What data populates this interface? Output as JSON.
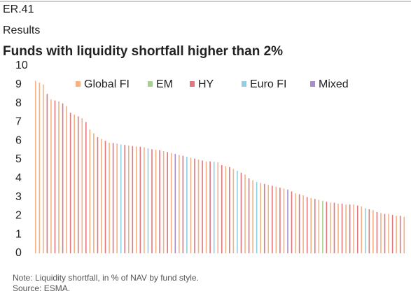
{
  "chart_data": {
    "type": "bar",
    "code": "ER.41",
    "section": "Results",
    "title": "Funds with liquidity shortfall higher than 2%",
    "note": "Note: Liquidity shortfall, in % of NAV by fund style.",
    "source": "Source: ESMA.",
    "ylim": [
      0,
      10
    ],
    "yticks": [
      0,
      1,
      2,
      3,
      4,
      5,
      6,
      7,
      8,
      9,
      10
    ],
    "grid": false,
    "legend": "top",
    "categories": [
      null,
      null,
      null,
      null,
      null,
      null,
      null,
      null,
      null,
      null,
      null,
      null,
      null,
      null,
      null,
      null,
      null,
      null,
      null,
      null,
      null,
      null,
      null,
      null,
      null,
      null,
      null,
      null,
      null,
      null,
      null,
      null,
      null,
      null,
      null,
      null,
      null,
      null,
      null,
      null,
      null,
      null,
      null,
      null,
      null,
      null,
      null,
      null,
      null,
      null,
      null,
      null,
      null,
      null,
      null,
      null,
      null,
      null,
      null,
      null,
      null,
      null,
      null,
      null,
      null,
      null,
      null,
      null,
      null,
      null,
      null,
      null,
      null,
      null,
      null,
      null,
      null,
      null,
      null,
      null,
      null,
      null,
      null,
      null,
      null,
      null,
      null,
      null,
      null,
      null,
      null,
      null,
      null,
      null,
      null,
      null
    ],
    "series": [
      {
        "name": "Global FI",
        "color": "#f4b183",
        "values": [
          9.2,
          9.1,
          9.0,
          null,
          8.2,
          null,
          8.1,
          null,
          7.85,
          null,
          7.4,
          null,
          7.2,
          null,
          6.6,
          6.4,
          null,
          6.1,
          null,
          5.9,
          null,
          5.85,
          null,
          null,
          5.75,
          null,
          5.7,
          null,
          5.65,
          null,
          null,
          5.52,
          null,
          5.45,
          null,
          5.35,
          null,
          5.25,
          null,
          null,
          5.1,
          null,
          5.0,
          null,
          4.9,
          null,
          null,
          4.85,
          null,
          4.65,
          null,
          4.5,
          null,
          null,
          4.2,
          null,
          3.9,
          null,
          3.75,
          null,
          3.65,
          null,
          3.55,
          null,
          3.45,
          null,
          null,
          3.2,
          null,
          3.1,
          null,
          2.95,
          null,
          2.85,
          null,
          null,
          2.7,
          null,
          2.65,
          null,
          2.6,
          null,
          2.6,
          null,
          2.5,
          null,
          null,
          2.3,
          null,
          2.15,
          null,
          2.1,
          null,
          2.0,
          null,
          1.95
        ]
      },
      {
        "name": "EM",
        "color": "#a9d18e",
        "values": [
          null,
          null,
          null,
          null,
          null,
          null,
          null,
          null,
          null,
          null,
          null,
          null,
          null,
          null,
          null,
          null,
          null,
          null,
          null,
          null,
          null,
          null,
          null,
          null,
          null,
          null,
          null,
          null,
          null,
          null,
          null,
          null,
          null,
          null,
          null,
          null,
          null,
          null,
          null,
          null,
          null,
          null,
          null,
          null,
          null,
          null,
          null,
          null,
          null,
          null,
          null,
          null,
          null,
          null,
          null,
          null,
          null,
          null,
          null,
          null,
          null,
          null,
          null,
          null,
          null,
          null,
          null,
          null,
          null,
          null,
          null,
          null,
          null,
          null,
          2.8,
          null,
          null,
          null,
          null,
          null,
          null,
          null,
          null,
          null,
          null,
          null,
          null,
          null,
          null,
          null,
          null,
          null,
          null,
          null,
          null,
          null
        ]
      },
      {
        "name": "HY",
        "color": "#e0767f",
        "values": [
          null,
          null,
          null,
          8.5,
          null,
          8.15,
          null,
          8.0,
          null,
          7.5,
          null,
          7.3,
          null,
          7.0,
          null,
          null,
          6.2,
          null,
          6.0,
          null,
          5.88,
          null,
          null,
          5.78,
          null,
          5.72,
          null,
          5.68,
          null,
          null,
          5.55,
          null,
          5.5,
          null,
          5.4,
          null,
          null,
          null,
          5.2,
          null,
          null,
          5.05,
          null,
          4.95,
          null,
          4.9,
          null,
          null,
          4.7,
          null,
          4.6,
          null,
          null,
          4.3,
          null,
          4.0,
          null,
          null,
          null,
          3.7,
          null,
          3.6,
          null,
          3.5,
          null,
          null,
          3.3,
          null,
          3.15,
          null,
          3.0,
          null,
          2.9,
          null,
          null,
          2.75,
          null,
          2.7,
          null,
          2.65,
          null,
          2.6,
          null,
          2.55,
          null,
          null,
          2.35,
          null,
          2.2,
          null,
          2.1,
          null,
          2.05,
          null,
          2.0,
          null
        ]
      },
      {
        "name": "Euro FI",
        "color": "#8ecfe2",
        "values": [
          null,
          null,
          null,
          null,
          null,
          null,
          null,
          null,
          null,
          null,
          null,
          null,
          null,
          null,
          null,
          null,
          null,
          null,
          null,
          null,
          null,
          null,
          5.8,
          null,
          null,
          null,
          null,
          null,
          null,
          5.6,
          null,
          null,
          null,
          null,
          null,
          null,
          null,
          null,
          null,
          5.15,
          null,
          null,
          null,
          null,
          null,
          null,
          4.88,
          null,
          null,
          null,
          null,
          null,
          4.4,
          null,
          null,
          null,
          null,
          3.8,
          null,
          null,
          null,
          null,
          null,
          null,
          null,
          null,
          null,
          null,
          null,
          null,
          null,
          null,
          null,
          null,
          null,
          null,
          null,
          null,
          null,
          null,
          null,
          null,
          null,
          null,
          null,
          2.4,
          null,
          null,
          null,
          null,
          null,
          null,
          null,
          null,
          null,
          null
        ]
      },
      {
        "name": "Mixed",
        "color": "#a88fcc",
        "values": [
          null,
          null,
          null,
          null,
          null,
          null,
          null,
          null,
          null,
          null,
          null,
          null,
          null,
          null,
          null,
          null,
          null,
          null,
          null,
          null,
          null,
          null,
          null,
          null,
          null,
          null,
          null,
          null,
          null,
          null,
          null,
          null,
          null,
          null,
          null,
          null,
          5.3,
          null,
          null,
          null,
          null,
          null,
          null,
          null,
          null,
          null,
          null,
          null,
          null,
          null,
          null,
          null,
          null,
          null,
          null,
          null,
          null,
          null,
          null,
          null,
          null,
          null,
          null,
          null,
          null,
          3.4,
          null,
          null,
          null,
          null,
          null,
          null,
          null,
          null,
          null,
          null,
          null,
          null,
          null,
          null,
          null,
          null,
          null,
          null,
          null,
          null,
          null,
          null,
          null,
          null,
          null,
          null,
          null,
          null,
          null,
          null
        ]
      }
    ]
  }
}
